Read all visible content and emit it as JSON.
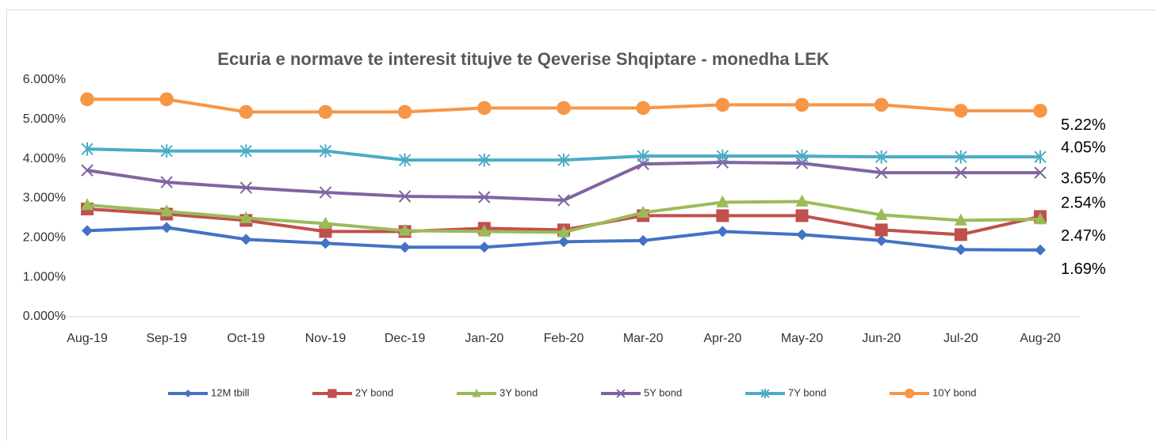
{
  "chart_data": {
    "type": "line",
    "title": "Ecuria e normave te interesit titujve te Qeverise Shqiptare - monedha LEK",
    "categories": [
      "Aug-19",
      "Sep-19",
      "Oct-19",
      "Nov-19",
      "Dec-19",
      "Jan-20",
      "Feb-20",
      "Mar-20",
      "Apr-20",
      "May-20",
      "Jun-20",
      "Jul-20",
      "Aug-20"
    ],
    "series": [
      {
        "name": "12M tbill",
        "color": "#4472c4",
        "marker": "diamond",
        "values": [
          2.18,
          2.26,
          1.96,
          1.86,
          1.76,
          1.76,
          1.9,
          1.93,
          2.16,
          2.08,
          1.93,
          1.7,
          1.69
        ],
        "value_labels": [
          null,
          null,
          null,
          null,
          null,
          null,
          null,
          null,
          null,
          null,
          null,
          null,
          "1.69%"
        ]
      },
      {
        "name": "2Y bond",
        "color": "#c0504d",
        "marker": "square",
        "values": [
          2.73,
          2.6,
          2.44,
          2.16,
          2.16,
          2.24,
          2.2,
          2.56,
          2.56,
          2.56,
          2.2,
          2.08,
          2.54
        ],
        "value_labels": [
          null,
          null,
          null,
          null,
          null,
          null,
          null,
          null,
          null,
          null,
          null,
          null,
          "2.54%"
        ]
      },
      {
        "name": "3Y bond",
        "color": "#9bbb59",
        "marker": "triangle",
        "values": [
          2.83,
          2.67,
          2.5,
          2.36,
          2.18,
          2.16,
          2.14,
          2.64,
          2.9,
          2.92,
          2.58,
          2.44,
          2.47
        ],
        "value_labels": [
          null,
          null,
          null,
          null,
          null,
          null,
          null,
          null,
          null,
          null,
          null,
          null,
          "2.47%"
        ]
      },
      {
        "name": "5Y bond",
        "color": "#8064a2",
        "marker": "x",
        "values": [
          3.71,
          3.41,
          3.27,
          3.15,
          3.05,
          3.03,
          2.95,
          3.87,
          3.91,
          3.89,
          3.65,
          3.65,
          3.65
        ],
        "value_labels": [
          null,
          null,
          null,
          null,
          null,
          null,
          null,
          null,
          null,
          null,
          null,
          null,
          "3.65%"
        ]
      },
      {
        "name": "7Y bond",
        "color": "#4bacc6",
        "marker": "star",
        "values": [
          4.25,
          4.2,
          4.2,
          4.2,
          3.97,
          3.97,
          3.97,
          4.07,
          4.07,
          4.07,
          4.05,
          4.05,
          4.05
        ],
        "value_labels": [
          null,
          null,
          null,
          null,
          null,
          null,
          null,
          null,
          null,
          null,
          null,
          null,
          "4.05%"
        ]
      },
      {
        "name": "10Y bond",
        "color": "#f79646",
        "marker": "circle",
        "values": [
          5.51,
          5.51,
          5.19,
          5.19,
          5.19,
          5.29,
          5.29,
          5.29,
          5.37,
          5.37,
          5.37,
          5.22,
          5.22
        ],
        "value_labels": [
          null,
          null,
          null,
          null,
          null,
          null,
          null,
          null,
          null,
          null,
          null,
          null,
          "5.22%"
        ]
      }
    ],
    "ylim": [
      0,
      6
    ],
    "yticks": [
      {
        "value": 0,
        "label": "0.000%"
      },
      {
        "value": 1,
        "label": "1.000%"
      },
      {
        "value": 2,
        "label": "2.000%"
      },
      {
        "value": 3,
        "label": "3.000%"
      },
      {
        "value": 4,
        "label": "4.000%"
      },
      {
        "value": 5,
        "label": "5.000%"
      },
      {
        "value": 6,
        "label": "6.000%"
      }
    ],
    "grid": false,
    "legend": "bottom"
  }
}
